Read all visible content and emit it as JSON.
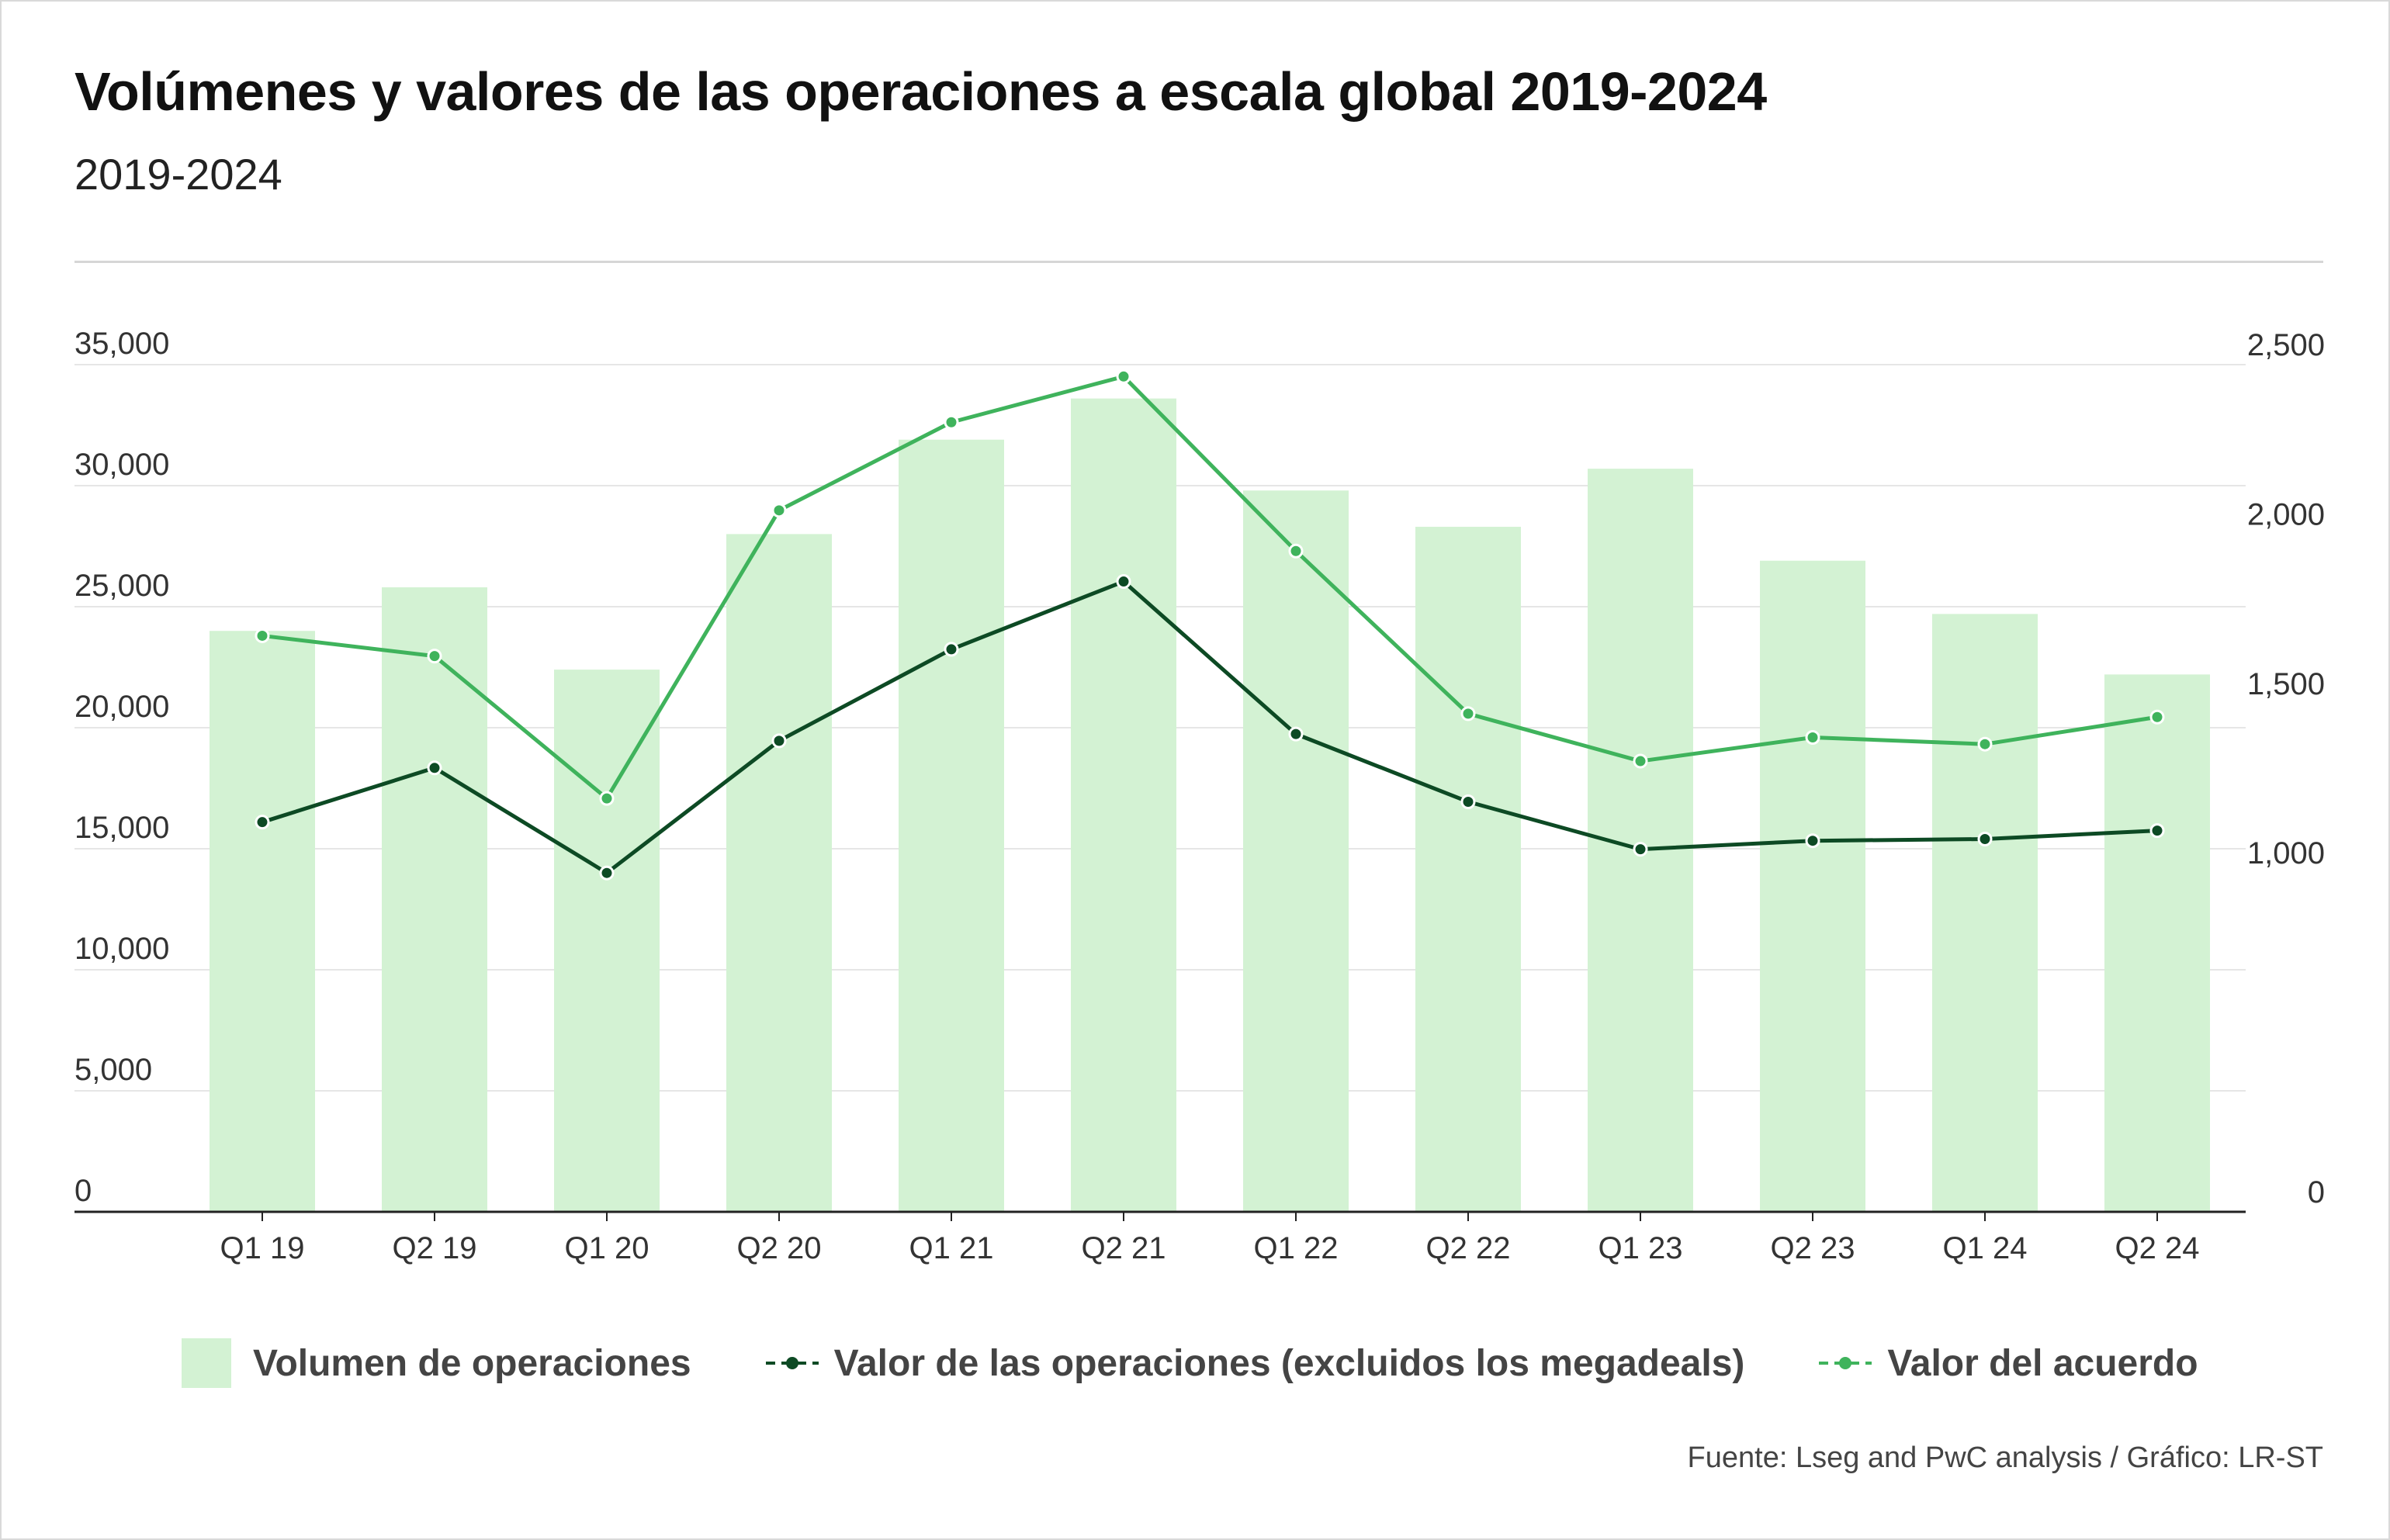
{
  "title": "Volúmenes y valores de las operaciones a escala global 2019-2024",
  "subtitle": "2019-2024",
  "source": "Fuente: Lseg and PwC analysis / Gráfico: LR-ST",
  "legend": {
    "bar": "Volumen de operaciones",
    "line_dark": "Valor de las operaciones (excluidos los megadeals)",
    "line_light": "Valor del acuerdo"
  },
  "colors": {
    "bar": "#d3f2d3",
    "line_dark": "#0d4a24",
    "line_light": "#3fb35c",
    "grid": "#e6e6e6",
    "axis": "#222222"
  },
  "chart_data": {
    "type": "bar",
    "categories": [
      "Q1 19",
      "Q2 19",
      "Q1 20",
      "Q2 20",
      "Q1 21",
      "Q2 21",
      "Q1 22",
      "Q2 22",
      "Q1 23",
      "Q2 23",
      "Q1 24",
      "Q2 24"
    ],
    "left_axis": {
      "ylim": [
        0,
        35000
      ],
      "ticks": [
        "0",
        "5,000",
        "10,000",
        "15,000",
        "20,000",
        "25,000",
        "30,000",
        "35,000"
      ],
      "tick_values": [
        0,
        5000,
        10000,
        15000,
        20000,
        25000,
        30000,
        35000
      ]
    },
    "right_axis": {
      "ylim": [
        0,
        2500
      ],
      "ticks": [
        "0",
        "1,000",
        "1,500",
        "2,000",
        "2,500"
      ],
      "tick_values": [
        0,
        1000,
        1500,
        2000,
        2500
      ]
    },
    "series": [
      {
        "name": "Volumen de operaciones",
        "type": "bar",
        "axis": "left",
        "values": [
          24000,
          25800,
          22400,
          28000,
          31900,
          33600,
          29800,
          28300,
          30700,
          26900,
          24700,
          22200
        ]
      },
      {
        "name": "Valor de las operaciones (excluidos los megadeals)",
        "type": "line",
        "axis": "right",
        "values": [
          1150,
          1310,
          1000,
          1390,
          1660,
          1860,
          1410,
          1210,
          1070,
          1095,
          1100,
          1125
        ]
      },
      {
        "name": "Valor del acuerdo",
        "type": "line",
        "axis": "right",
        "values": [
          1700,
          1640,
          1220,
          2070,
          2330,
          2465,
          1950,
          1470,
          1330,
          1400,
          1380,
          1460
        ]
      }
    ],
    "grid": true
  }
}
